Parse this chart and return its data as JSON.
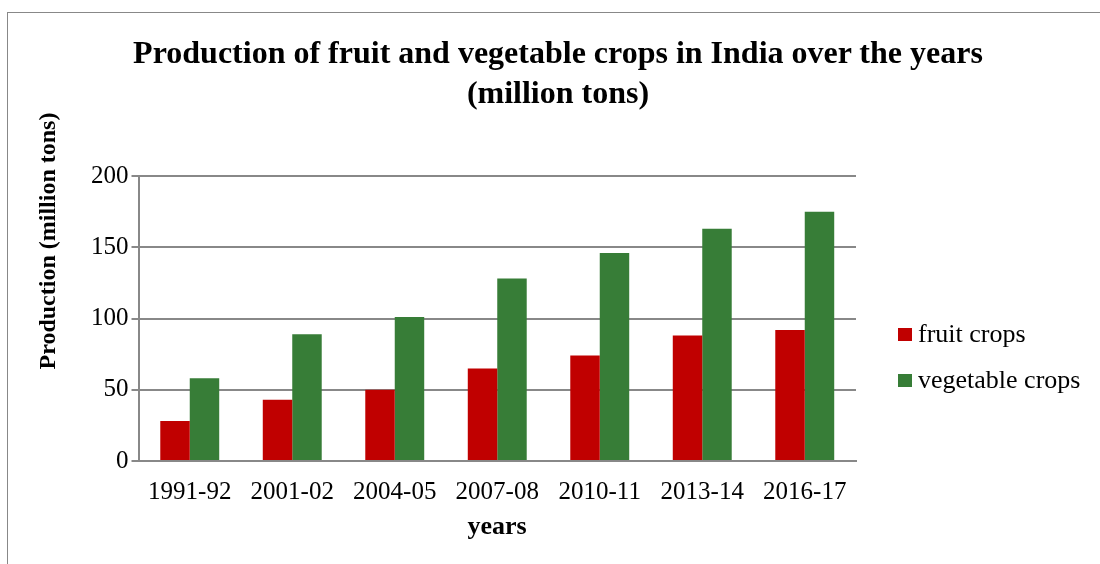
{
  "chart_data": {
    "type": "bar",
    "title": "Production of fruit and vegetable crops in India over the years (million tons)",
    "xlabel": "years",
    "ylabel": "Production (million tons)",
    "categories": [
      "1991-92",
      "2001-02",
      "2004-05",
      "2007-08",
      "2010-11",
      "2013-14",
      "2016-17"
    ],
    "series": [
      {
        "name": "fruit crops",
        "color": "#c00000",
        "values": [
          28,
          43,
          50,
          65,
          74,
          88,
          92
        ]
      },
      {
        "name": "vegetable crops",
        "color": "#377d37",
        "values": [
          58,
          89,
          101,
          128,
          146,
          163,
          175
        ]
      }
    ],
    "ylim": [
      0,
      200
    ],
    "yticks": [
      0,
      50,
      100,
      150,
      200
    ],
    "grid": "y",
    "legend": "right"
  }
}
